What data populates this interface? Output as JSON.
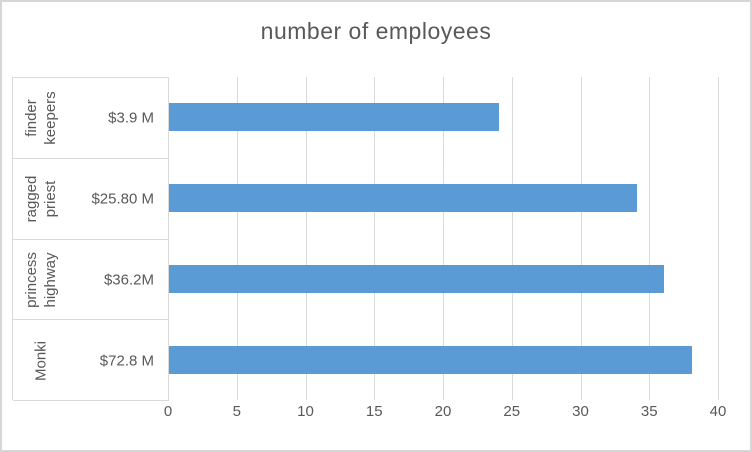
{
  "chart_data": {
    "type": "bar",
    "orientation": "horizontal",
    "title": "number of employees",
    "categories": [
      "finder keepers",
      "ragged priest",
      "princess highway",
      "Monki"
    ],
    "category_label_lines": [
      [
        "finder",
        "keepers"
      ],
      [
        "ragged",
        "priest"
      ],
      [
        "princess",
        "highway"
      ],
      [
        "Monki"
      ]
    ],
    "category_value_labels": [
      "$3.9 M",
      "$25.80 M",
      "$36.2M",
      "$72.8 M"
    ],
    "series": [
      {
        "name": "number of employees",
        "values": [
          24,
          34,
          36,
          38
        ]
      }
    ],
    "xlim": [
      0,
      40
    ],
    "x_ticks": [
      0,
      5,
      10,
      15,
      20,
      25,
      30,
      35,
      40
    ],
    "grid": true,
    "legend": false,
    "colors": {
      "bar": "#5b9bd5",
      "gridline": "#d9d9d9",
      "axis_line": "#d9d9d9",
      "text": "#595959",
      "chart_border": "#d6d6d6",
      "background": "#ffffff"
    }
  }
}
